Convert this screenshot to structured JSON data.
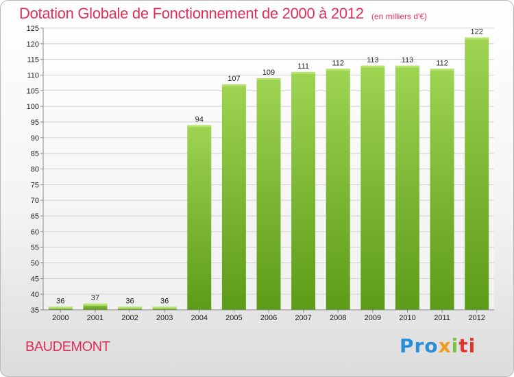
{
  "chart_data": {
    "type": "bar",
    "title": "Dotation Globale de Fonctionnement de 2000 à 2012",
    "subtitle": "(en milliers d'€)",
    "categories": [
      "2000",
      "2001",
      "2002",
      "2003",
      "2004",
      "2005",
      "2006",
      "2007",
      "2008",
      "2009",
      "2010",
      "2011",
      "2012"
    ],
    "values": [
      36,
      37,
      36,
      36,
      94,
      107,
      109,
      111,
      112,
      113,
      113,
      112,
      122
    ],
    "ylim": [
      35,
      125
    ],
    "yticks": [
      35,
      40,
      45,
      50,
      55,
      60,
      65,
      70,
      75,
      80,
      85,
      90,
      95,
      100,
      105,
      110,
      115,
      120,
      125
    ],
    "grid": true,
    "xlabel": "",
    "ylabel": "",
    "bar_color": "#7ab833"
  },
  "commune": "BAUDEMONT",
  "logo": {
    "p1": "Pro",
    "p2": "x",
    "p3": "i",
    "p4": "ti"
  }
}
